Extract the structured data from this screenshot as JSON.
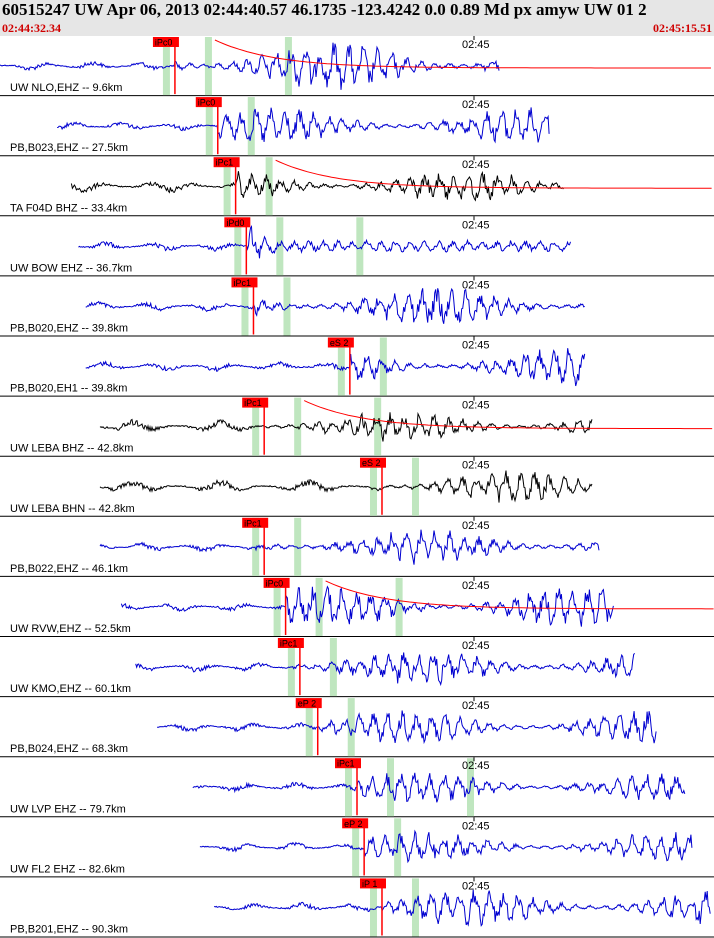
{
  "header": {
    "title": "60515247 UW Apr 06, 2013 02:44:40.57   46.1735 -123.4242  0.0 0.89 Md px amyw UW 01   2",
    "time_start": "02:44:32.34",
    "time_end": "02:45:15.51"
  },
  "chart_data": {
    "type": "line",
    "time_mark": "02:45",
    "colors": {
      "trace": "#0000d0",
      "trace_alt": "#000000",
      "pick": "#ff0000",
      "window": "#bfe6bf",
      "grid": "#000000"
    },
    "traces": [
      {
        "label": "UW NLO,EHZ -- 9.6km",
        "pick": "iPc0",
        "color": "blue",
        "pick_t": 0.245,
        "start": 0.0,
        "end": 0.7,
        "amp": 0.95,
        "decay": 1
      },
      {
        "label": "PB,B023,EHZ -- 27.5km",
        "pick": "iPc0",
        "color": "blue",
        "pick_t": 0.305,
        "start": 0.08,
        "end": 0.77,
        "amp": 0.7
      },
      {
        "label": "TA F04D BHZ -- 33.4km",
        "pick": "iPc1",
        "color": "black",
        "pick_t": 0.33,
        "start": 0.1,
        "end": 0.79,
        "amp": 0.65,
        "decay": 1
      },
      {
        "label": "UW BOW EHZ -- 36.7km",
        "pick": "iPd0",
        "color": "blue",
        "pick_t": 0.345,
        "start": 0.11,
        "end": 0.8,
        "amp": 0.9,
        "spike": 1
      },
      {
        "label": "PB,B020,EHZ -- 39.8km",
        "pick": "iPc1",
        "color": "blue",
        "pick_t": 0.355,
        "start": 0.12,
        "end": 0.82,
        "amp": 0.75
      },
      {
        "label": "PB,B020,EH1 -- 39.8km",
        "pick": "eS 2",
        "color": "blue",
        "pick_t": 0.49,
        "start": 0.12,
        "end": 0.82,
        "amp": 0.75
      },
      {
        "label": "UW LEBA BHZ -- 42.8km",
        "pick": "iPc1",
        "color": "black",
        "pick_t": 0.37,
        "start": 0.14,
        "end": 0.83,
        "amp": 0.6,
        "decay": 1
      },
      {
        "label": "UW LEBA BHN -- 42.8km",
        "pick": "eS 2",
        "color": "black",
        "pick_t": 0.535,
        "start": 0.14,
        "end": 0.83,
        "amp": 0.6
      },
      {
        "label": "PB,B022,EHZ -- 46.1km",
        "pick": "iPc1",
        "color": "blue",
        "pick_t": 0.37,
        "start": 0.14,
        "end": 0.84,
        "amp": 0.7
      },
      {
        "label": "UW RVW,EHZ -- 52.5km",
        "pick": "iPc0",
        "color": "blue",
        "pick_t": 0.4,
        "start": 0.17,
        "end": 0.86,
        "amp": 0.8,
        "decay": 1
      },
      {
        "label": "UW KMO,EHZ -- 60.1km",
        "pick": "iPc1",
        "color": "blue",
        "pick_t": 0.42,
        "start": 0.19,
        "end": 0.89,
        "amp": 0.7
      },
      {
        "label": "PB,B024,EHZ -- 68.3km",
        "pick": "eP 2",
        "color": "blue",
        "pick_t": 0.445,
        "start": 0.22,
        "end": 0.92,
        "amp": 0.65
      },
      {
        "label": "UW LVP EHZ -- 79.7km",
        "pick": "iPc1",
        "color": "blue",
        "pick_t": 0.5,
        "start": 0.27,
        "end": 0.96,
        "amp": 0.6
      },
      {
        "label": "UW FL2 EHZ -- 82.6km",
        "pick": "eP 2",
        "color": "blue",
        "pick_t": 0.51,
        "start": 0.28,
        "end": 0.97,
        "amp": 0.6
      },
      {
        "label": "PB,B201,EHZ -- 90.3km",
        "pick": "iP 1",
        "color": "blue",
        "pick_t": 0.535,
        "start": 0.3,
        "end": 0.995,
        "amp": 0.75
      }
    ]
  }
}
